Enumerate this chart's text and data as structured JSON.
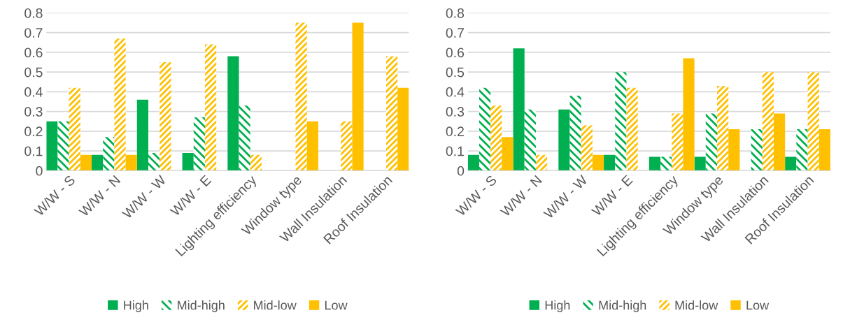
{
  "chart_data": [
    {
      "type": "bar",
      "categories": [
        "W/W - S",
        "W/W - N",
        "W/W - W",
        "W/W - E",
        "Lighting efficiency",
        "Window type",
        "Wall Insulation",
        "Roof Insulation"
      ],
      "series": [
        {
          "name": "High",
          "color": "#00b050",
          "values": [
            0.25,
            0.08,
            0.36,
            0.09,
            0.58,
            0,
            0,
            0
          ]
        },
        {
          "name": "Mid-high",
          "color": "#00b050",
          "values": [
            0.25,
            0.17,
            0.09,
            0.27,
            0.33,
            0,
            0,
            0
          ]
        },
        {
          "name": "Mid-low",
          "color": "#ffc000",
          "values": [
            0.42,
            0.67,
            0.55,
            0.64,
            0.08,
            0.75,
            0.25,
            0.58
          ]
        },
        {
          "name": "Low",
          "color": "#ffc000",
          "values": [
            0.08,
            0.08,
            0,
            0,
            0,
            0.25,
            0.75,
            0.42
          ]
        }
      ],
      "ylim": [
        0,
        0.8
      ],
      "yticks": [
        0,
        0.1,
        0.2,
        0.3,
        0.4,
        0.5,
        0.6,
        0.7,
        0.8
      ],
      "grid": "y",
      "legend": "bottom"
    },
    {
      "type": "bar",
      "categories": [
        "W/W - S",
        "W/W - N",
        "W/W - W",
        "W/W - E",
        "Lighting efficiency",
        "Window type",
        "Wall Insulation",
        "Roof Insulation"
      ],
      "series": [
        {
          "name": "High",
          "color": "#00b050",
          "values": [
            0.08,
            0.62,
            0.31,
            0.08,
            0.07,
            0.07,
            0,
            0.07
          ]
        },
        {
          "name": "Mid-high",
          "color": "#00b050",
          "values": [
            0.42,
            0.31,
            0.38,
            0.5,
            0.07,
            0.29,
            0.21,
            0.21
          ]
        },
        {
          "name": "Mid-low",
          "color": "#ffc000",
          "values": [
            0.33,
            0.08,
            0.23,
            0.42,
            0.29,
            0.43,
            0.5,
            0.5
          ]
        },
        {
          "name": "Low",
          "color": "#ffc000",
          "values": [
            0.17,
            0,
            0.08,
            0,
            0.57,
            0.21,
            0.29,
            0.21
          ]
        }
      ],
      "ylim": [
        0,
        0.8
      ],
      "yticks": [
        0,
        0.1,
        0.2,
        0.3,
        0.4,
        0.5,
        0.6,
        0.7,
        0.8
      ],
      "grid": "y",
      "legend": "bottom"
    }
  ]
}
